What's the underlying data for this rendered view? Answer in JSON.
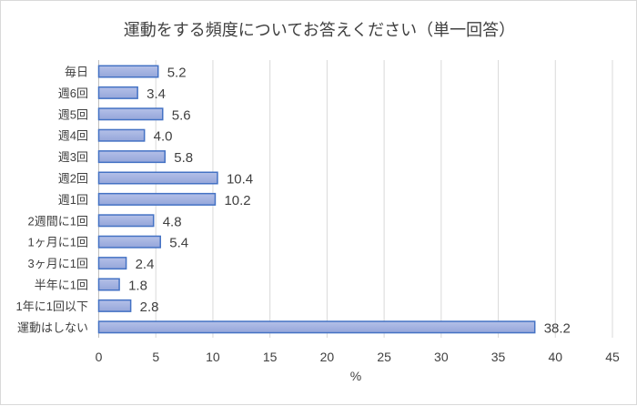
{
  "chart_data": {
    "type": "bar",
    "orientation": "horizontal",
    "title": "運動をする頻度についてお答えください（単一回答）",
    "xlabel": "%",
    "ylabel": "",
    "xlim": [
      0,
      45
    ],
    "xticks": [
      0,
      5,
      10,
      15,
      20,
      25,
      30,
      35,
      40,
      45
    ],
    "grid": true,
    "categories": [
      "毎日",
      "週6回",
      "週5回",
      "週4回",
      "週3回",
      "週2回",
      "週1回",
      "2週間に1回",
      "1ヶ月に1回",
      "3ヶ月に1回",
      "半年に1回",
      "1年に1回以下",
      "運動はしない"
    ],
    "values": [
      5.2,
      3.4,
      5.6,
      4.0,
      5.8,
      10.4,
      10.2,
      4.8,
      5.4,
      2.4,
      1.8,
      2.8,
      38.2
    ],
    "value_labels": [
      "5.2",
      "3.4",
      "5.6",
      "4.0",
      "5.8",
      "10.4",
      "10.2",
      "4.8",
      "5.4",
      "2.4",
      "1.8",
      "2.8",
      "38.2"
    ],
    "colors": {
      "bar_fill": "#a3b1df",
      "bar_border": "#4472c4",
      "grid": "#d9d9d9"
    }
  }
}
